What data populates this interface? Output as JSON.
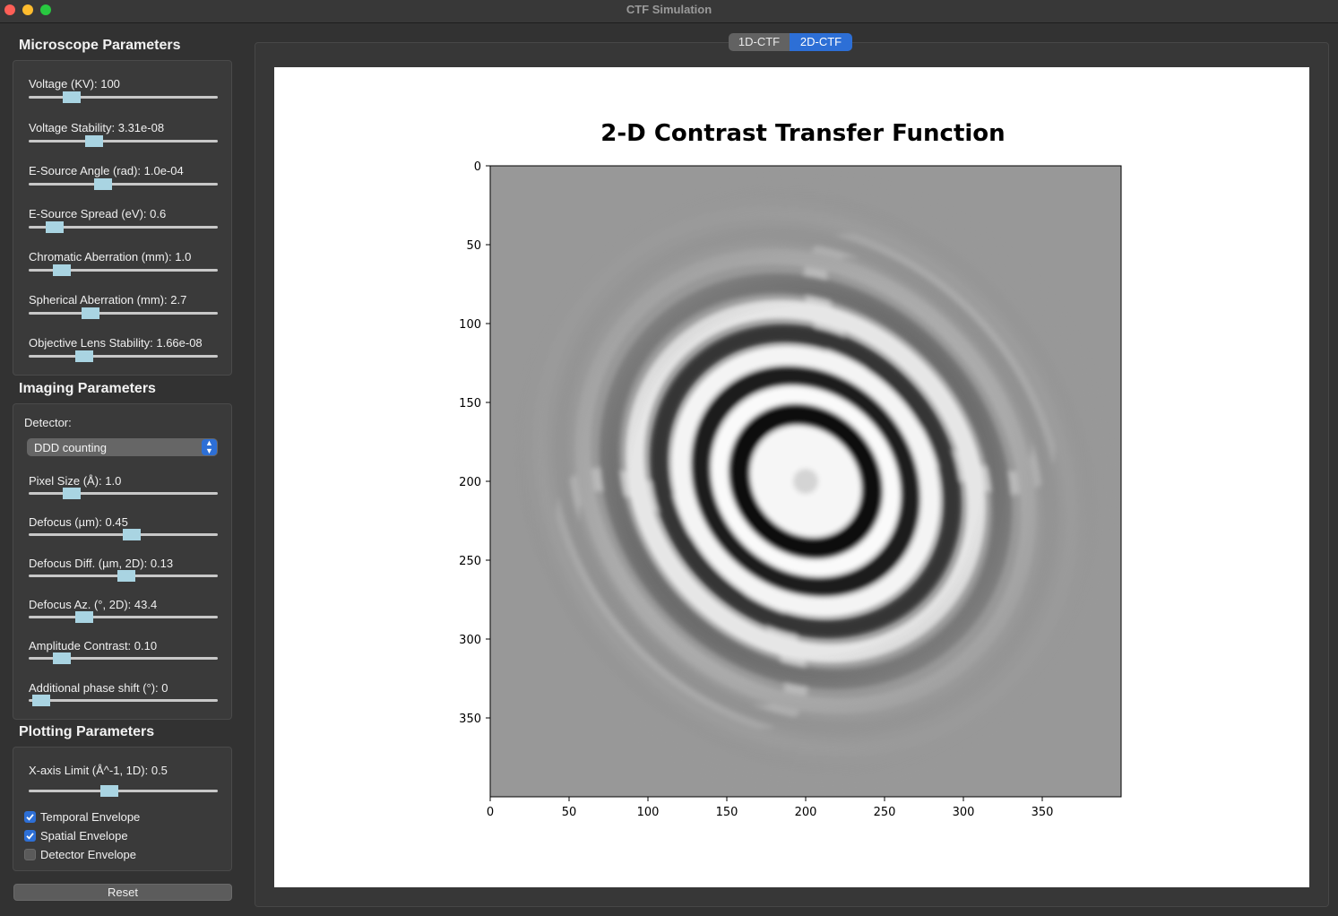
{
  "window": {
    "title": "CTF Simulation"
  },
  "microscope": {
    "title": "Microscope Parameters",
    "sliders": [
      {
        "label": "Voltage (KV): 100",
        "level": 0.2
      },
      {
        "label": "Voltage Stability: 3.31e-08",
        "level": 0.33
      },
      {
        "label": "E-Source Angle (rad): 1.0e-04",
        "level": 0.38
      },
      {
        "label": "E-Source Spread (eV): 0.6",
        "level": 0.1
      },
      {
        "label": "Chromatic Aberration (mm): 1.0",
        "level": 0.14
      },
      {
        "label": "Spherical Aberration (mm): 2.7",
        "level": 0.31
      },
      {
        "label": "Objective Lens Stability: 1.66e-08",
        "level": 0.27
      }
    ]
  },
  "imaging": {
    "title": "Imaging Parameters",
    "detector_label": "Detector:",
    "detector_value": "DDD counting",
    "sliders": [
      {
        "label": "Pixel Size (Å): 1.0",
        "level": 0.2
      },
      {
        "label": "Defocus (µm): 0.45",
        "level": 0.55
      },
      {
        "label": "Defocus Diff. (µm, 2D): 0.13",
        "level": 0.52
      },
      {
        "label": "Defocus Az. (°, 2D): 43.4",
        "level": 0.27
      },
      {
        "label": "Amplitude Contrast: 0.10",
        "level": 0.14
      },
      {
        "label": "Additional phase shift (°): 0",
        "level": 0.02
      }
    ]
  },
  "plotting": {
    "title": "Plotting Parameters",
    "xlimit": {
      "label": "X-axis Limit (Å^-1, 1D): 0.5",
      "level": 0.42
    },
    "checkboxes": [
      {
        "label": "Temporal Envelope",
        "checked": true
      },
      {
        "label": "Spatial Envelope",
        "checked": true
      },
      {
        "label": "Detector Envelope",
        "checked": false
      }
    ],
    "reset_label": "Reset"
  },
  "tabs": [
    {
      "label": "1D-CTF",
      "active": false
    },
    {
      "label": "2D-CTF",
      "active": true
    }
  ],
  "chart_data": {
    "type": "heatmap",
    "title": "2-D Contrast Transfer Function",
    "colormap": "gray",
    "x_ticks": [
      "0",
      "50",
      "100",
      "150",
      "200",
      "250",
      "300",
      "350"
    ],
    "y_ticks": [
      "0",
      "50",
      "100",
      "150",
      "200",
      "250",
      "300",
      "350"
    ],
    "xlim": [
      0,
      400
    ],
    "ylim": [
      400,
      0
    ],
    "image_size": [
      400,
      400
    ],
    "center": [
      200,
      200
    ],
    "defocus_um": 0.45,
    "defocus_diff_um": 0.13,
    "defocus_azimuth_deg": 43.4
  }
}
